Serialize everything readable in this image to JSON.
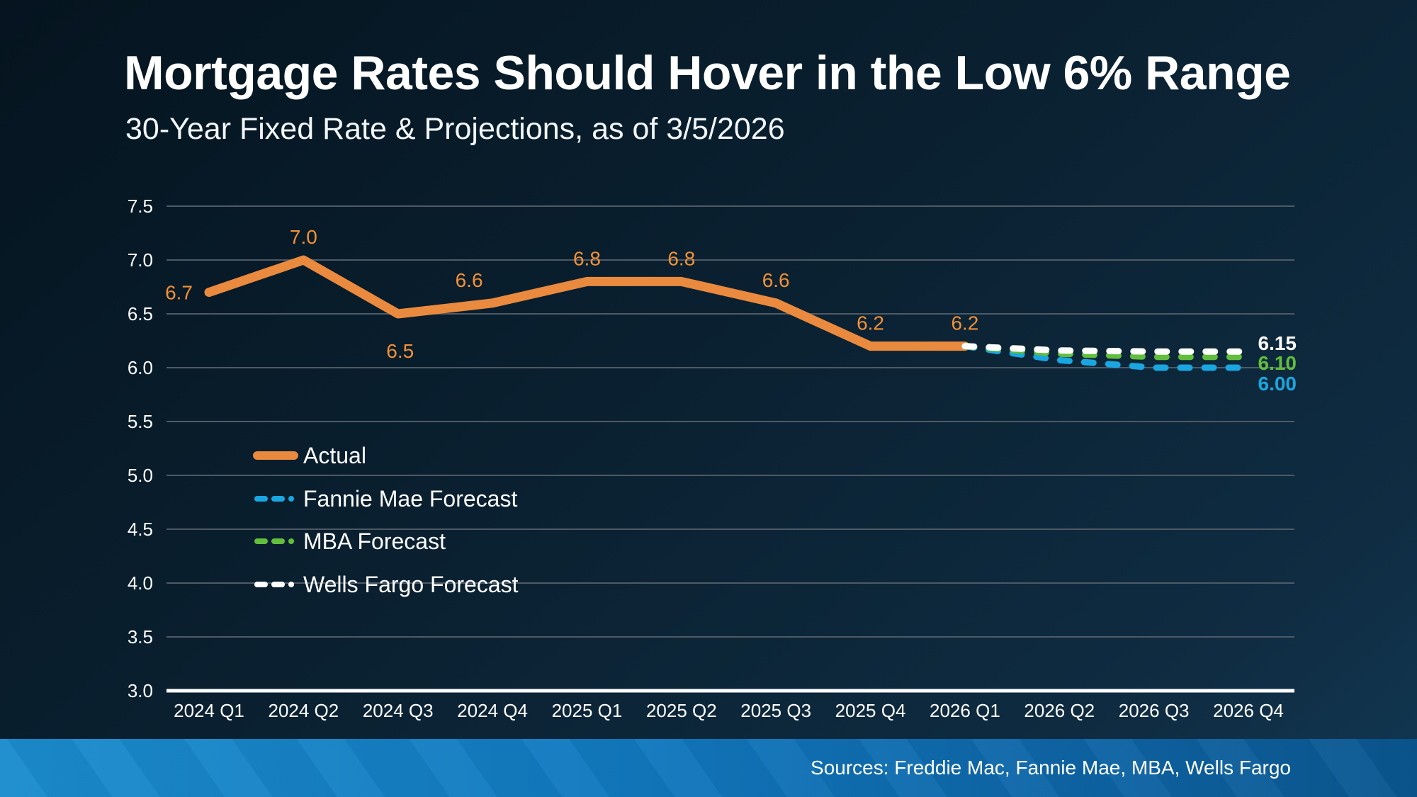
{
  "slide": {
    "title": "Mortgage Rates Should Hover in the Low 6% Range",
    "subtitle": "30-Year Fixed Rate & Projections, as of 3/5/2026",
    "sources": "Sources: Freddie Mac, Fannie Mae, MBA, Wells Fargo"
  },
  "colors": {
    "background_top": "#05141f",
    "background_bottom": "#123853",
    "grid": "#4e5a65",
    "axis_line": "#ffffff",
    "axis_text": "#ffffff",
    "actual": "#ea8a3e",
    "actual_label": "#f29136",
    "fannie_mae": "#1aa6e0",
    "mba": "#62be3c",
    "wells_fargo": "#ffffff",
    "footer_left": "#1b8ccd",
    "footer_right": "#0a568f"
  },
  "chart_data": {
    "type": "line",
    "title": "Mortgage Rates Should Hover in the Low 6% Range",
    "subtitle": "30-Year Fixed Rate & Projections, as of 3/5/2026",
    "xlabel": "",
    "ylabel": "",
    "ylim": [
      3.0,
      7.5
    ],
    "ytick_step": 0.5,
    "ytick_labels": [
      "7.5",
      "7.0",
      "6.5",
      "6.0",
      "5.5",
      "5.0",
      "4.5",
      "4.0",
      "3.5",
      "3.0"
    ],
    "grid": true,
    "legend_position": "inside-left",
    "categories": [
      "2024 Q1",
      "2024 Q2",
      "2024 Q3",
      "2024 Q4",
      "2025 Q1",
      "2025 Q2",
      "2025 Q3",
      "2025 Q4",
      "2026 Q1",
      "2026 Q2",
      "2026 Q3",
      "2026 Q4"
    ],
    "series": [
      {
        "name": "Actual",
        "color": "#ea8a3e",
        "line_style": "solid",
        "values": [
          6.7,
          7.0,
          6.5,
          6.6,
          6.8,
          6.8,
          6.6,
          6.2,
          6.2,
          null,
          null,
          null
        ],
        "point_labels": [
          "6.7",
          "7.0",
          "6.5",
          "6.6",
          "6.8",
          "6.8",
          "6.6",
          "6.2",
          "6.2"
        ],
        "label_placements": [
          "left",
          "above",
          "below",
          "above-left",
          "above",
          "above",
          "above",
          "above",
          "above"
        ]
      },
      {
        "name": "Fannie Mae Forecast",
        "color": "#1aa6e0",
        "line_style": "dashed",
        "values": [
          null,
          null,
          null,
          null,
          null,
          null,
          null,
          null,
          6.2,
          6.07,
          6.0,
          6.0
        ],
        "end_label": "6.00"
      },
      {
        "name": "MBA Forecast",
        "color": "#62be3c",
        "line_style": "dashed",
        "values": [
          null,
          null,
          null,
          null,
          null,
          null,
          null,
          null,
          6.2,
          6.13,
          6.1,
          6.1
        ],
        "end_label": "6.10"
      },
      {
        "name": "Wells Fargo Forecast",
        "color": "#ffffff",
        "line_style": "dashed",
        "values": [
          null,
          null,
          null,
          null,
          null,
          null,
          null,
          null,
          6.2,
          6.16,
          6.15,
          6.15
        ],
        "end_label": "6.15"
      }
    ]
  }
}
